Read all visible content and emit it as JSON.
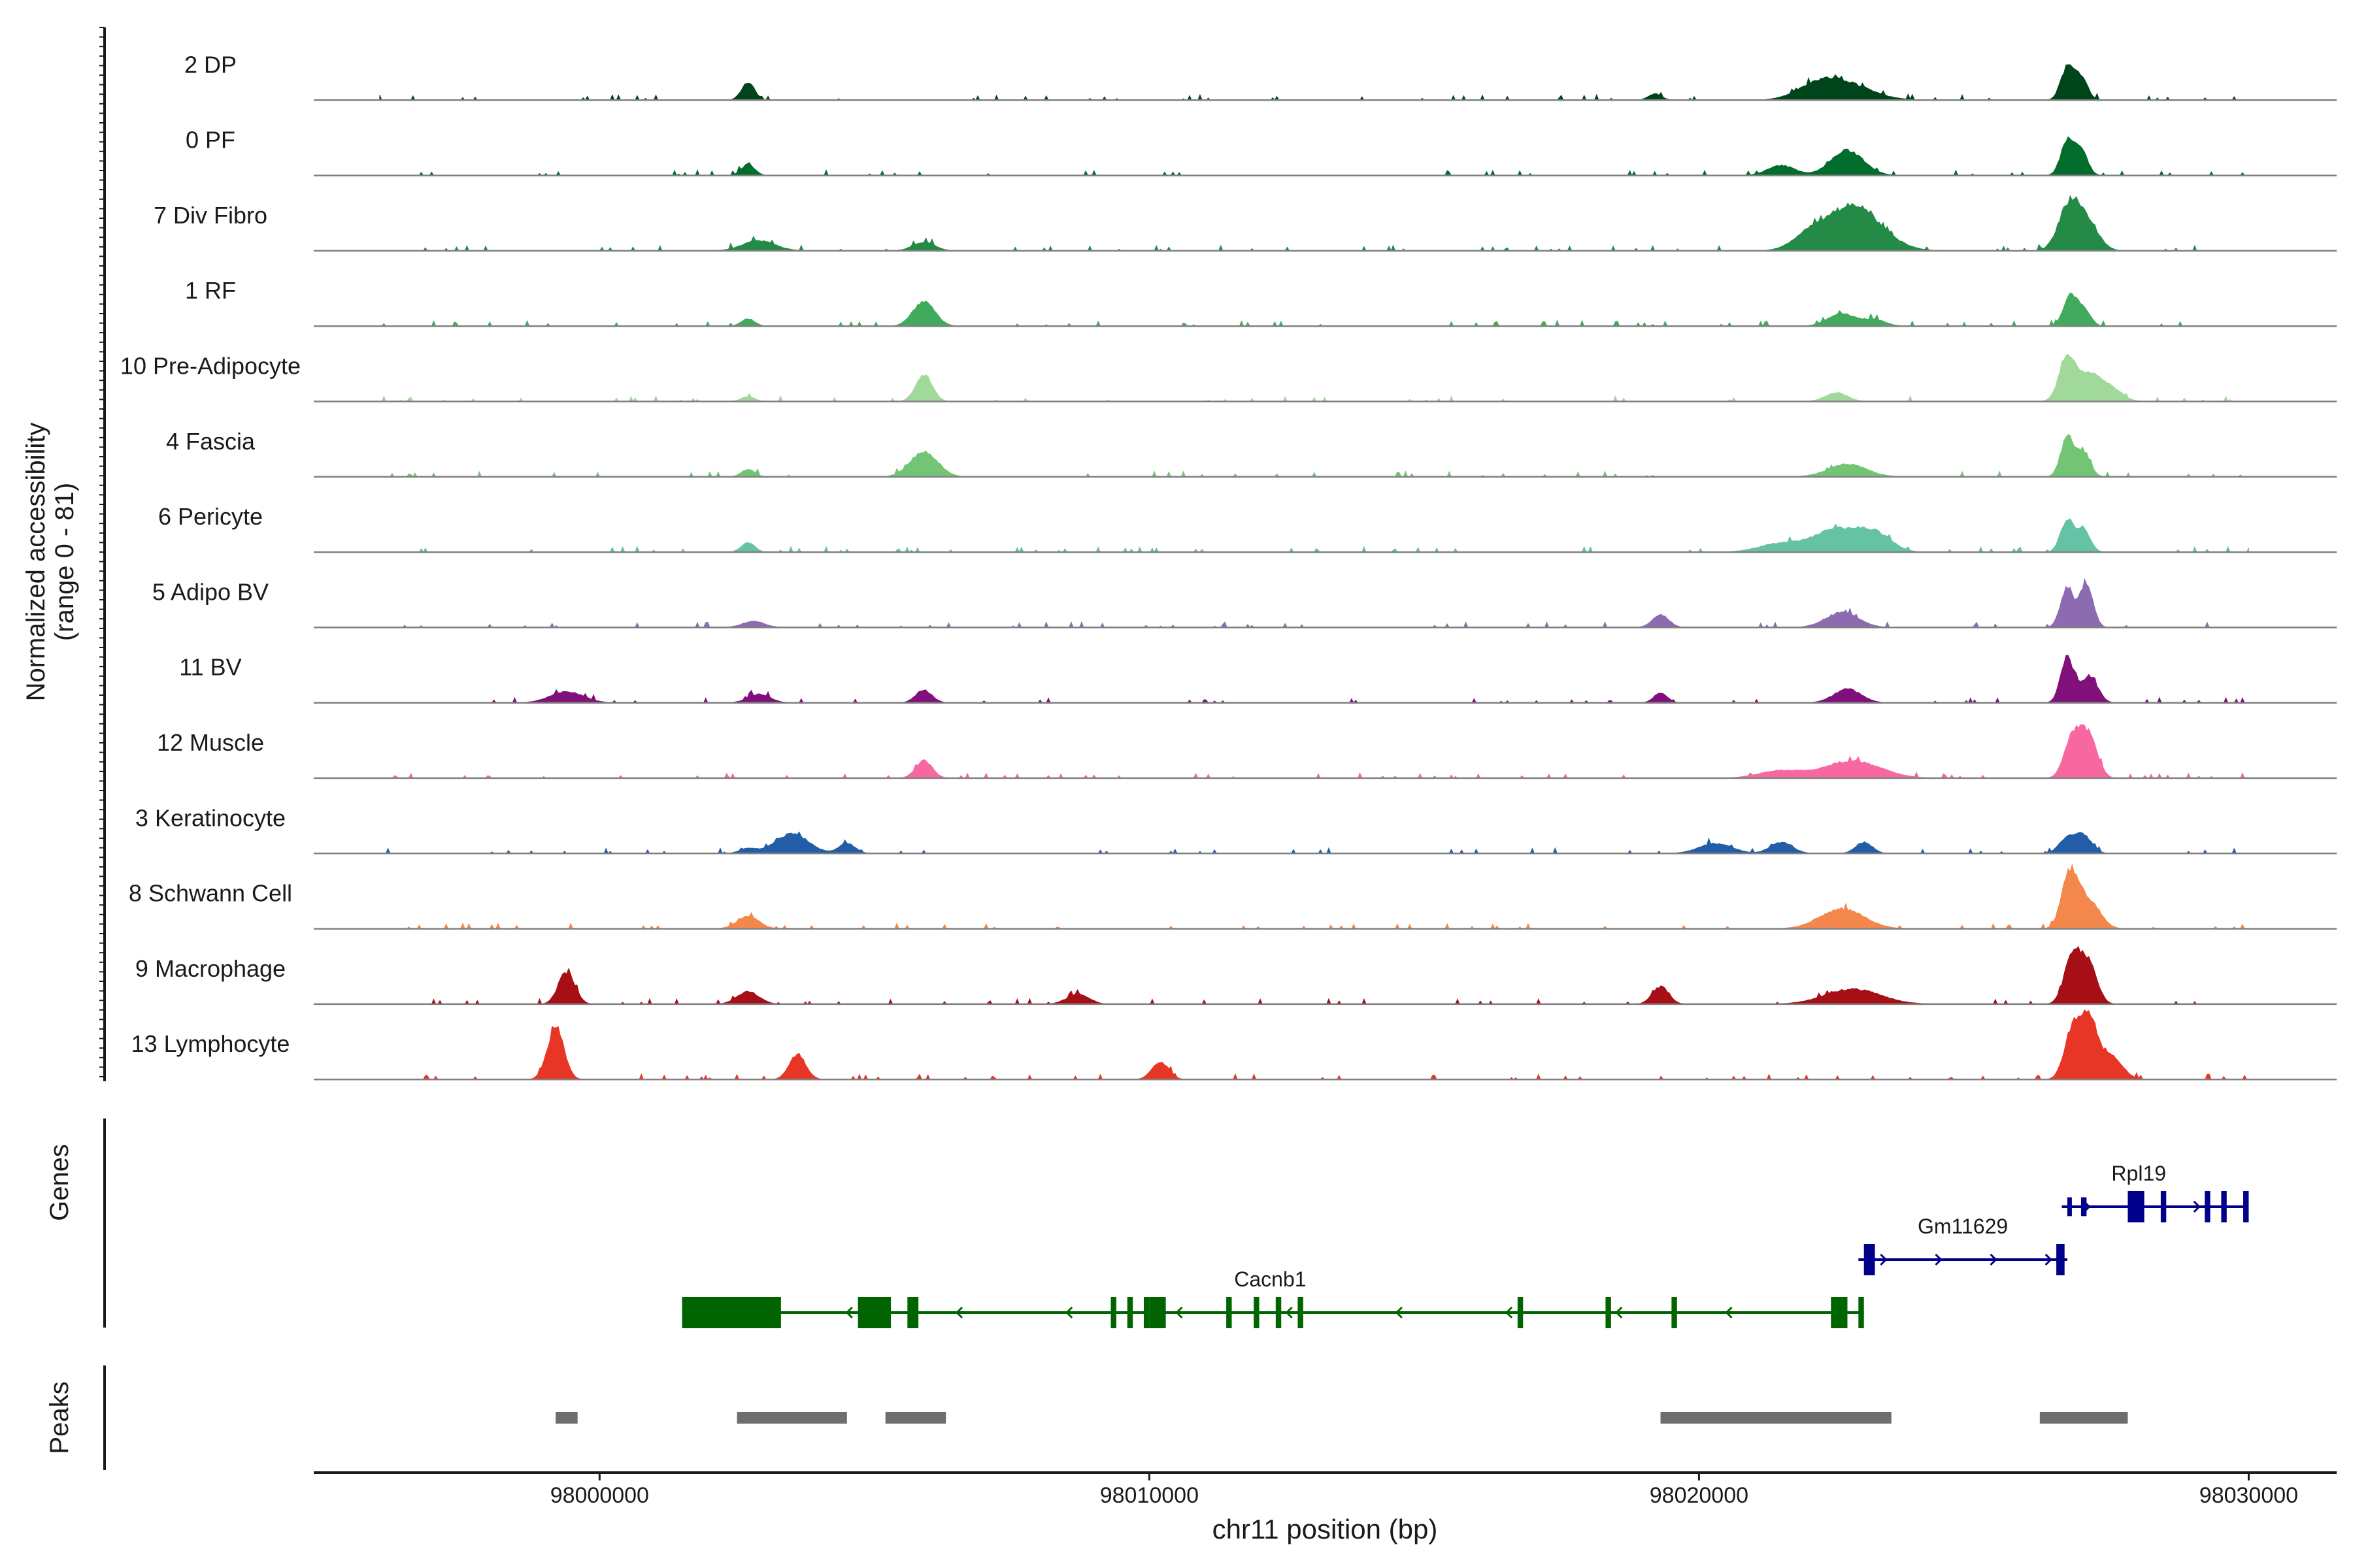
{
  "chart_data": {
    "type": "area",
    "title": "",
    "ylabel_line1": "Normalized accessibility",
    "ylabel_line2": "(range 0 - 81)",
    "ylim": [
      0,
      81
    ],
    "xlabel": "chr11 position (bp)",
    "xlim": [
      97994800,
      98031600
    ],
    "xticks": [
      98000000,
      98010000,
      98020000,
      98030000
    ],
    "xtick_labels": [
      "98000000",
      "98010000",
      "98020000",
      "98030000"
    ],
    "track_labels": {
      "genes": "Genes",
      "peaks": "Peaks"
    },
    "series": [
      {
        "name": "2 DP",
        "color": "#00441b",
        "peaks": [
          [
            98002700,
            14,
            120
          ],
          [
            98022600,
            14,
            500
          ],
          [
            98022100,
            7,
            350
          ],
          [
            98019200,
            5,
            120
          ],
          [
            98026700,
            26,
            120
          ],
          [
            98026950,
            18,
            120
          ]
        ]
      },
      {
        "name": "0 PF",
        "color": "#006d2c",
        "peaks": [
          [
            98002700,
            9,
            120
          ],
          [
            98022700,
            20,
            300
          ],
          [
            98021500,
            8,
            250
          ],
          [
            98026700,
            27,
            120
          ],
          [
            98026950,
            20,
            120
          ]
        ]
      },
      {
        "name": "7 Div Fibro",
        "color": "#238b45",
        "peaks": [
          [
            98002900,
            8,
            300
          ],
          [
            98005900,
            7,
            200
          ],
          [
            98022800,
            36,
            500
          ],
          [
            98022000,
            9,
            300
          ],
          [
            98026750,
            38,
            200
          ],
          [
            98027100,
            18,
            200
          ]
        ]
      },
      {
        "name": "1 RF",
        "color": "#41ab5d",
        "peaks": [
          [
            98002700,
            6,
            120
          ],
          [
            98005900,
            20,
            200
          ],
          [
            98022600,
            10,
            250
          ],
          [
            98023200,
            5,
            200
          ],
          [
            98026750,
            24,
            120
          ],
          [
            98027000,
            14,
            120
          ]
        ]
      },
      {
        "name": "10 Pre-Adipocyte",
        "color": "#a1d99b",
        "peaks": [
          [
            98005900,
            22,
            150
          ],
          [
            98002700,
            4,
            120
          ],
          [
            98022500,
            7,
            200
          ],
          [
            98026700,
            34,
            150
          ],
          [
            98027100,
            22,
            200
          ],
          [
            98027500,
            10,
            200
          ]
        ]
      },
      {
        "name": "4 Fascia",
        "color": "#74c476",
        "peaks": [
          [
            98005900,
            20,
            250
          ],
          [
            98002700,
            6,
            120
          ],
          [
            98022700,
            10,
            350
          ],
          [
            98026700,
            32,
            120
          ],
          [
            98027000,
            20,
            120
          ]
        ]
      },
      {
        "name": "6 Pericyte",
        "color": "#66c2a4",
        "peaks": [
          [
            98002700,
            8,
            120
          ],
          [
            98022500,
            18,
            400
          ],
          [
            98023200,
            14,
            300
          ],
          [
            98021500,
            7,
            400
          ],
          [
            98026700,
            26,
            120
          ],
          [
            98027000,
            18,
            120
          ]
        ]
      },
      {
        "name": "5 Adipo BV",
        "color": "#8c6bb1",
        "peaks": [
          [
            98002800,
            5,
            200
          ],
          [
            98019300,
            10,
            150
          ],
          [
            98022600,
            12,
            300
          ],
          [
            98026700,
            32,
            120
          ],
          [
            98027050,
            34,
            120
          ]
        ]
      },
      {
        "name": "11 BV",
        "color": "#810f7c",
        "peaks": [
          [
            97999400,
            9,
            300
          ],
          [
            98002900,
            7,
            200
          ],
          [
            98005900,
            10,
            150
          ],
          [
            98019300,
            8,
            120
          ],
          [
            98022700,
            11,
            250
          ],
          [
            98026700,
            36,
            120
          ],
          [
            98027100,
            22,
            150
          ]
        ]
      },
      {
        "name": "12 Muscle",
        "color": "#f768a1",
        "peaks": [
          [
            98005900,
            14,
            150
          ],
          [
            98022800,
            14,
            500
          ],
          [
            98021500,
            6,
            400
          ],
          [
            98026800,
            35,
            150
          ],
          [
            98027100,
            33,
            150
          ]
        ]
      },
      {
        "name": "3 Keratinocyte",
        "color": "#225ea8",
        "peaks": [
          [
            98003500,
            16,
            300
          ],
          [
            98002700,
            4,
            150
          ],
          [
            98004500,
            8,
            150
          ],
          [
            98020300,
            8,
            300
          ],
          [
            98021500,
            9,
            200
          ],
          [
            98023000,
            9,
            150
          ],
          [
            98026700,
            12,
            150
          ],
          [
            98027000,
            14,
            150
          ]
        ]
      },
      {
        "name": "8 Schwann Cell",
        "color": "#f4874b",
        "peaks": [
          [
            98002700,
            10,
            200
          ],
          [
            98022600,
            16,
            400
          ],
          [
            98026750,
            44,
            150
          ],
          [
            98027100,
            22,
            200
          ]
        ]
      },
      {
        "name": "9 Macrophage",
        "color": "#a50f15",
        "peaks": [
          [
            97999400,
            26,
            150
          ],
          [
            98002700,
            10,
            200
          ],
          [
            98008700,
            8,
            200
          ],
          [
            98019300,
            14,
            150
          ],
          [
            98022800,
            12,
            500
          ],
          [
            98026800,
            40,
            150
          ],
          [
            98027100,
            30,
            150
          ]
        ]
      },
      {
        "name": "13 Lymphocyte",
        "color": "#e83626",
        "peaks": [
          [
            97999200,
            42,
            150
          ],
          [
            98003600,
            20,
            150
          ],
          [
            98010200,
            14,
            150
          ],
          [
            98026800,
            40,
            150
          ],
          [
            98027100,
            46,
            150
          ],
          [
            98027500,
            18,
            200
          ]
        ]
      }
    ],
    "genes": [
      {
        "name": "Cacnb1",
        "strand": "-",
        "color": "#006400",
        "start": 98001500,
        "end": 98023000,
        "label_pos": 98012200,
        "row": 0,
        "exons": [
          [
            98001500,
            98003300,
            1
          ],
          [
            98004700,
            98005300,
            1
          ],
          [
            98005600,
            98005800,
            1
          ],
          [
            98009300,
            98009400,
            1
          ],
          [
            98009600,
            98009700,
            1
          ],
          [
            98009900,
            98010000,
            1
          ],
          [
            98010000,
            98010300,
            1
          ],
          [
            98011400,
            98011500,
            1
          ],
          [
            98011900,
            98012000,
            1
          ],
          [
            98012300,
            98012400,
            1
          ],
          [
            98012700,
            98012800,
            1
          ],
          [
            98016700,
            98016800,
            1
          ],
          [
            98018300,
            98018400,
            1
          ],
          [
            98019500,
            98019600,
            1
          ],
          [
            98022400,
            98022700,
            1
          ],
          [
            98022900,
            98023000,
            1
          ]
        ]
      },
      {
        "name": "Gm11629",
        "strand": "+",
        "color": "#00008b",
        "start": 98022900,
        "end": 98026700,
        "label_pos": 98024800,
        "row": 1,
        "exons": [
          [
            98023000,
            98023200,
            1
          ],
          [
            98026500,
            98026650,
            1
          ]
        ]
      },
      {
        "name": "Rpl19",
        "strand": "+",
        "color": "#00008b",
        "start": 98026600,
        "end": 98030000,
        "label_pos": 98028000,
        "row": 2,
        "exons": [
          [
            98026700,
            98026750,
            0.6
          ],
          [
            98026950,
            98027050,
            0.6
          ],
          [
            98027800,
            98028100,
            1
          ],
          [
            98028400,
            98028500,
            1
          ],
          [
            98029200,
            98029300,
            1
          ],
          [
            98029500,
            98029600,
            1
          ],
          [
            98029900,
            98030000,
            1
          ]
        ]
      }
    ],
    "peaks_track": [
      [
        97999200,
        97999600
      ],
      [
        98002500,
        98004500
      ],
      [
        98005200,
        98006300
      ],
      [
        98019300,
        98023500
      ],
      [
        98026200,
        98027800
      ]
    ]
  }
}
